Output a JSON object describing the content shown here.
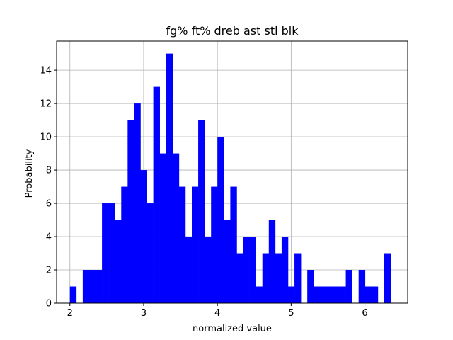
{
  "chart_data": {
    "type": "bar",
    "title": "fg% ft% dreb ast stl blk",
    "xlabel": "normalized value",
    "ylabel": "Probability",
    "xlim": [
      1.82,
      6.58
    ],
    "ylim": [
      0,
      15.75
    ],
    "xticks": [
      2,
      3,
      4,
      5,
      6
    ],
    "yticks": [
      0,
      2,
      4,
      6,
      8,
      10,
      12,
      14
    ],
    "grid": true,
    "bar_color": "#0000ff",
    "bin_start": 2.0,
    "bin_width": 0.087,
    "values": [
      1,
      0,
      2,
      2,
      2,
      6,
      6,
      5,
      7,
      11,
      12,
      8,
      6,
      13,
      9,
      15,
      9,
      7,
      4,
      7,
      11,
      4,
      7,
      10,
      5,
      7,
      3,
      4,
      4,
      1,
      3,
      5,
      3,
      4,
      1,
      3,
      0,
      2,
      1,
      1,
      1,
      1,
      1,
      2,
      0,
      2,
      1,
      1,
      0,
      3
    ]
  }
}
